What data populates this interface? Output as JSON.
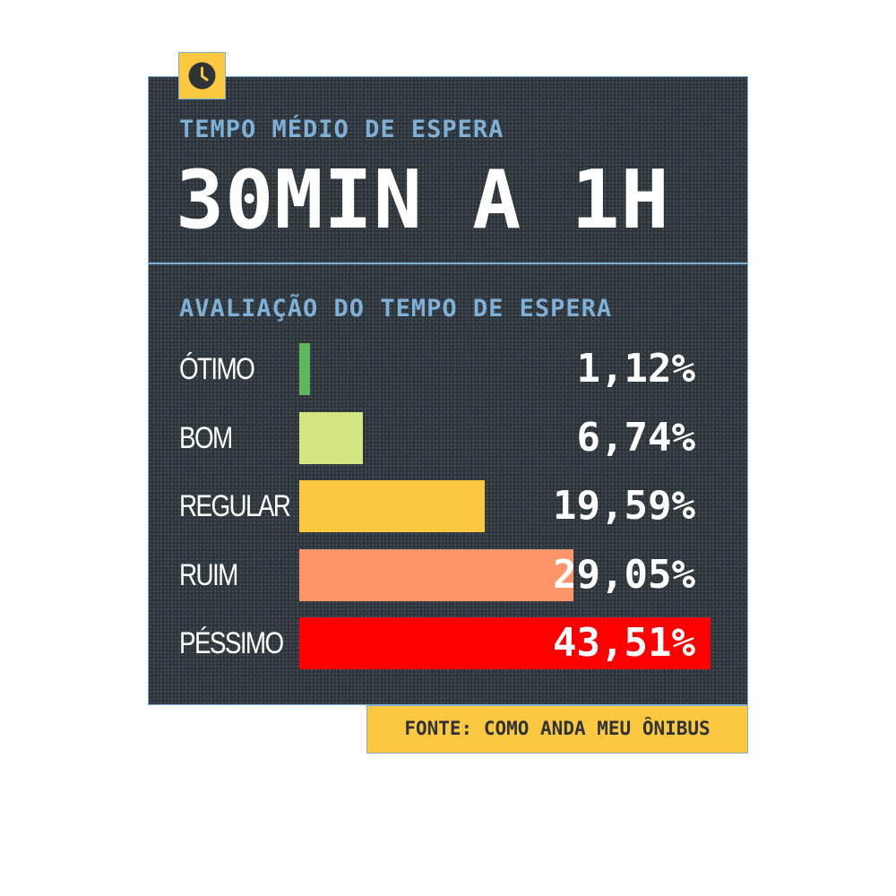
{
  "header": {
    "icon": "clock-icon",
    "kicker": "TEMPO MÉDIO DE ESPERA",
    "headline": "30MIN A 1H"
  },
  "source": "FONTE: COMO ANDA MEU ÔNIBUS",
  "colors": {
    "background": "#2f3336",
    "accent_blue": "#7fb1d8",
    "accent_yellow": "#fcc83f"
  },
  "chart_data": {
    "type": "bar",
    "orientation": "horizontal",
    "title": "AVALIAÇÃO DO TEMPO DE ESPERA",
    "categories": [
      "ÓTIMO",
      "BOM",
      "REGULAR",
      "RUIM",
      "PÉSSIMO"
    ],
    "values": [
      1.12,
      6.74,
      19.59,
      29.05,
      43.51
    ],
    "value_labels": [
      "1,12%",
      "6,74%",
      "19,59%",
      "29,05%",
      "43,51%"
    ],
    "unit": "%",
    "colors": [
      "#5cb85c",
      "#d4e682",
      "#fcc83f",
      "#ff9468",
      "#ff0000"
    ],
    "xlim": [
      0,
      43.51
    ],
    "grid": false,
    "legend": "none"
  }
}
